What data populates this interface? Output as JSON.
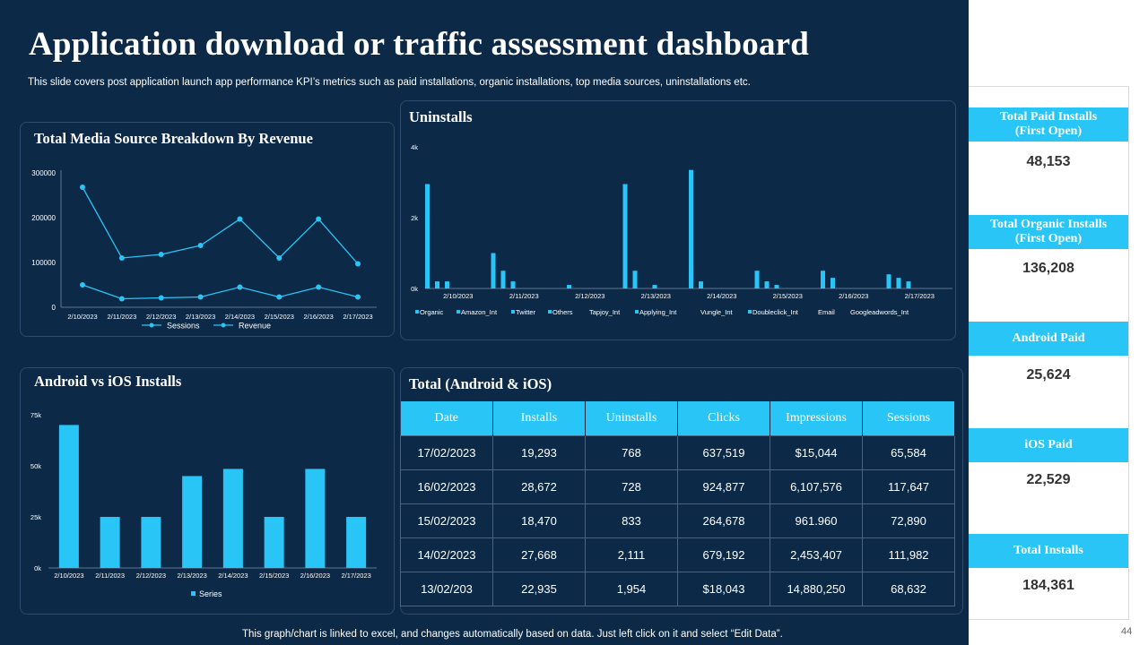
{
  "header": {
    "title": "Application download or traffic assessment dashboard",
    "subtitle": "This slide covers post application launch app performance KPI’s metrics such as paid installations, organic installations, top media sources, uninstallations etc."
  },
  "footer": {
    "note": "This graph/chart is linked to excel, and changes automatically based on data. Just left click on it and select “Edit Data”.",
    "page_number": "44"
  },
  "colors": {
    "background": "#0c2a47",
    "accent": "#29c5f6",
    "line": "#29c5f6"
  },
  "panels": {
    "media_title": "Total Media Source Breakdown By Revenue",
    "uninstalls_title": "Uninstalls",
    "installs_title": "Android vs iOS Installs",
    "total_title": "Total (Android & iOS)"
  },
  "chart_data": [
    {
      "type": "line",
      "title": "Total Media Source Breakdown By Revenue",
      "categories": [
        "2/10/2023",
        "2/11/2023",
        "2/12/2023",
        "2/13/2023",
        "2/14/2023",
        "2/15/2023",
        "2/16/2023",
        "2/17/2023"
      ],
      "series": [
        {
          "name": "Sessions",
          "values": [
            50000,
            19000,
            21000,
            23000,
            45000,
            23000,
            45000,
            23000
          ]
        },
        {
          "name": "Revenue",
          "values": [
            268000,
            110000,
            118000,
            138000,
            197000,
            110000,
            197000,
            97000
          ]
        }
      ],
      "ylim": [
        0,
        300000
      ],
      "yticks": [
        "0",
        "100000",
        "200000",
        "300000"
      ],
      "legend": "bottom",
      "grid": false
    },
    {
      "type": "bar",
      "title": "Uninstalls",
      "categories": [
        "2/10/2023",
        "2/11/2023",
        "2/12/2023",
        "2/13/2023",
        "2/14/2023",
        "2/15/2023",
        "2/16/2023",
        "2/17/2023"
      ],
      "series": [
        {
          "name": "Organic",
          "values": [
            2950,
            1000,
            0,
            2950,
            3350,
            500,
            500,
            400
          ]
        },
        {
          "name": "Amazon_Int",
          "values": [
            200,
            500,
            100,
            500,
            200,
            200,
            300,
            300
          ]
        },
        {
          "name": "Twitter",
          "values": [
            200,
            200,
            0,
            0,
            0,
            100,
            0,
            200
          ]
        },
        {
          "name": "Others",
          "values": [
            0,
            0,
            0,
            100,
            0,
            0,
            0,
            0
          ]
        }
      ],
      "legend_entries": [
        "Organic",
        "Amazon_Int",
        "Twitter",
        "Others",
        "Tapjoy_Int",
        "Applying_Int",
        "Vungle_Int",
        "Doubleclick_Int",
        "Email",
        "Googleadwords_Int"
      ],
      "ylim": [
        0,
        4000
      ],
      "yticks": [
        "0k",
        "2k",
        "4k"
      ],
      "legend": "bottom",
      "grid": false
    },
    {
      "type": "bar",
      "title": "Android vs iOS Installs",
      "categories": [
        "2/10/2023",
        "2/11/2023",
        "2/12/2023",
        "2/13/2023",
        "2/14/2023",
        "2/15/2023",
        "2/16/2023",
        "2/17/2023"
      ],
      "series": [
        {
          "name": "Series",
          "values": [
            70000,
            25000,
            25000,
            45000,
            48500,
            25000,
            48500,
            25000
          ]
        }
      ],
      "ylim": [
        0,
        75000
      ],
      "yticks": [
        "0k",
        "25k",
        "50k",
        "75k"
      ],
      "legend": "bottom",
      "grid": false
    },
    {
      "type": "table",
      "title": "Total (Android & iOS)",
      "columns": [
        "Date",
        "Installs",
        "Uninstalls",
        "Clicks",
        "Impressions",
        "Sessions"
      ],
      "rows": [
        [
          "17/02/2023",
          "19,293",
          "768",
          "637,519",
          "$15,044",
          "65,584"
        ],
        [
          "16/02/2023",
          "28,672",
          "728",
          "924,877",
          "6,107,576",
          "117,647"
        ],
        [
          "15/02/2023",
          "18,470",
          "833",
          "264,678",
          "961.960",
          "72,890"
        ],
        [
          "14/02/2023",
          "27,668",
          "2,111",
          "679,192",
          "2,453,407",
          "111,982"
        ],
        [
          "13/02/203",
          "22,935",
          "1,954",
          "$18,043",
          "14,880,250",
          "68,632"
        ]
      ]
    }
  ],
  "kpis": [
    {
      "label": "Total Paid Installs (First Open)",
      "value": "48,153"
    },
    {
      "label": "Total Organic Installs (First Open)",
      "value": "136,208"
    },
    {
      "label": "Android Paid",
      "value": "25,624"
    },
    {
      "label": "iOS Paid",
      "value": "22,529"
    },
    {
      "label": "Total Installs",
      "value": "184,361"
    }
  ]
}
